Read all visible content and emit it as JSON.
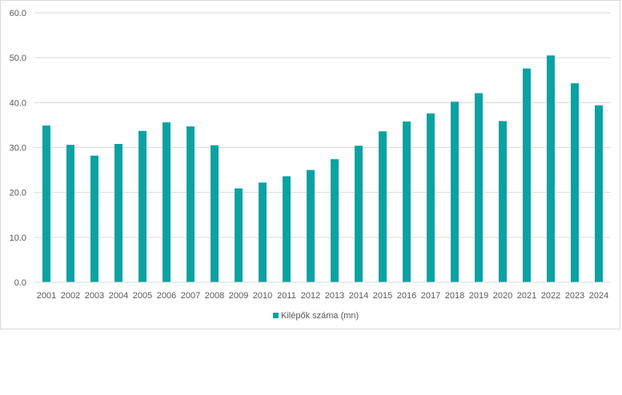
{
  "chart_data": {
    "type": "bar",
    "title": "",
    "xlabel": "",
    "ylabel": "",
    "categories": [
      "2001",
      "2002",
      "2003",
      "2004",
      "2005",
      "2006",
      "2007",
      "2008",
      "2009",
      "2010",
      "2011",
      "2012",
      "2013",
      "2014",
      "2015",
      "2016",
      "2017",
      "2018",
      "2019",
      "2020",
      "2021",
      "2022",
      "2023",
      "2024"
    ],
    "series": [
      {
        "name": "Kilépők száma (mn)",
        "color": "#0aa2a3",
        "values": [
          34.9,
          30.6,
          28.2,
          30.8,
          33.7,
          35.6,
          34.7,
          30.5,
          20.9,
          22.2,
          23.6,
          25.0,
          27.4,
          30.4,
          33.6,
          35.8,
          37.6,
          40.2,
          42.1,
          35.9,
          47.6,
          50.5,
          44.3,
          39.4
        ]
      }
    ],
    "ylim": [
      0,
      60
    ],
    "yticks": [
      "0.0",
      "10.0",
      "20.0",
      "30.0",
      "40.0",
      "50.0",
      "60.0"
    ],
    "grid": true,
    "legend_position": "bottom"
  }
}
